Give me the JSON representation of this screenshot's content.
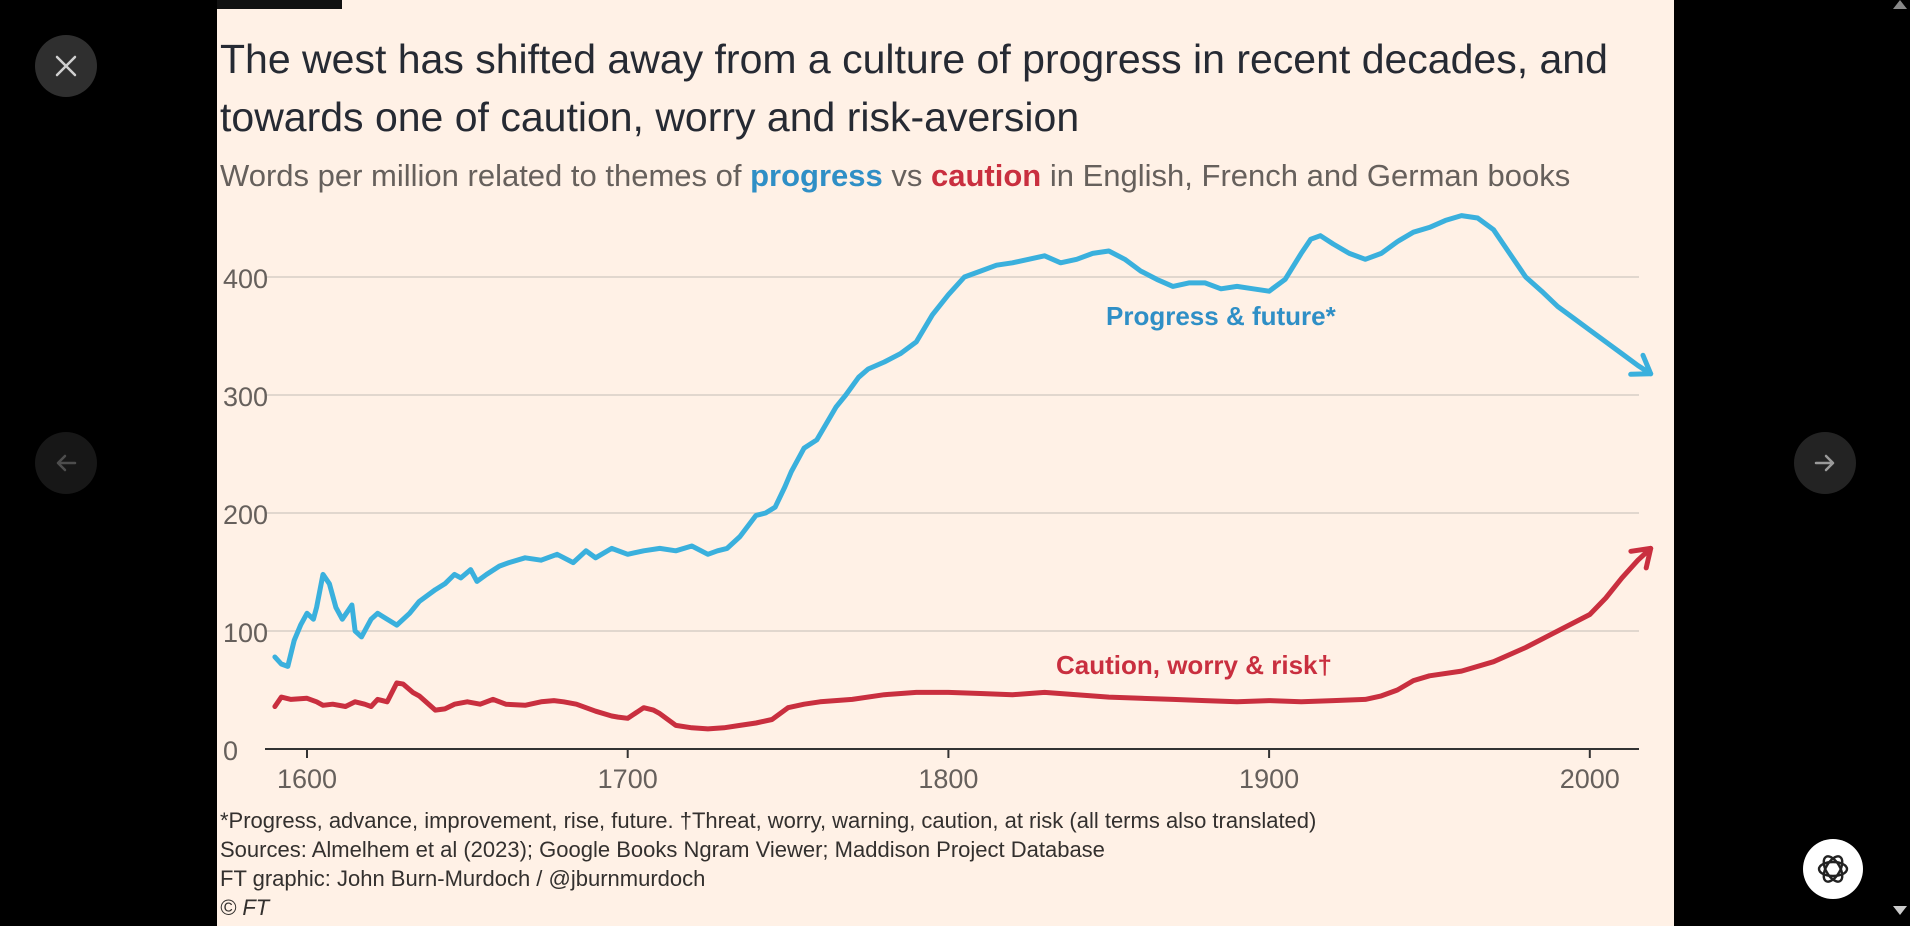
{
  "viewer": {
    "close_icon": "close-icon",
    "prev_icon": "arrow-left-icon",
    "next_icon": "arrow-right-icon",
    "assistant_icon": "openai-logo-icon"
  },
  "chart_data": {
    "type": "line",
    "title": "The west has shifted away from a culture of progress in recent decades, and towards one of caution, worry and risk-aversion",
    "subtitle": {
      "before": "Words per million related to themes of ",
      "highlight1": "progress",
      "middle": " vs ",
      "highlight2": "caution",
      "after": " in English, French and German books"
    },
    "xlim": [
      1590,
      2020
    ],
    "ylim": [
      0,
      450
    ],
    "x_ticks": [
      1600,
      1700,
      1800,
      1900,
      2000
    ],
    "y_ticks": [
      0,
      100,
      200,
      300,
      400
    ],
    "grid": true,
    "colors": {
      "progress": "#3ab0dd",
      "caution": "#c92f3f",
      "progress_label": "#2f8fc6",
      "grid": "#e1d7ce",
      "axis": "#333333",
      "tick_text": "#66605c"
    },
    "series": [
      {
        "name": "Progress & future*",
        "color": "#3ab0dd",
        "x": [
          1590,
          1592,
          1594,
          1596,
          1598,
          1600,
          1602,
          1603,
          1605,
          1607,
          1609,
          1611,
          1613,
          1614,
          1615,
          1617,
          1619,
          1620,
          1622,
          1625,
          1628,
          1632,
          1635,
          1640,
          1643,
          1646,
          1648,
          1651,
          1653,
          1656,
          1660,
          1663,
          1668,
          1673,
          1678,
          1683,
          1687,
          1690,
          1695,
          1700,
          1705,
          1710,
          1715,
          1720,
          1725,
          1728,
          1731,
          1735,
          1740,
          1743,
          1746,
          1749,
          1751,
          1755,
          1759,
          1765,
          1768,
          1772,
          1775,
          1780,
          1785,
          1790,
          1795,
          1800,
          1805,
          1810,
          1815,
          1820,
          1825,
          1830,
          1835,
          1840,
          1845,
          1850,
          1855,
          1860,
          1865,
          1870,
          1875,
          1880,
          1885,
          1890,
          1895,
          1900,
          1905,
          1910,
          1913,
          1916,
          1920,
          1925,
          1930,
          1935,
          1940,
          1945,
          1950,
          1955,
          1960,
          1965,
          1970,
          1975,
          1980,
          1985,
          1990,
          1995,
          2000,
          2005,
          2010,
          2015,
          2019
        ],
        "y": [
          78,
          72,
          70,
          92,
          105,
          115,
          110,
          120,
          148,
          140,
          120,
          110,
          118,
          122,
          100,
          95,
          105,
          110,
          115,
          110,
          105,
          115,
          125,
          135,
          140,
          148,
          145,
          152,
          142,
          148,
          155,
          158,
          162,
          160,
          165,
          158,
          168,
          162,
          170,
          165,
          168,
          170,
          168,
          172,
          165,
          168,
          170,
          180,
          198,
          200,
          205,
          222,
          235,
          255,
          262,
          290,
          300,
          315,
          322,
          328,
          335,
          345,
          368,
          385,
          400,
          405,
          410,
          412,
          415,
          418,
          412,
          415,
          420,
          422,
          415,
          405,
          398,
          392,
          395,
          395,
          390,
          392,
          390,
          388,
          398,
          420,
          432,
          435,
          428,
          420,
          415,
          420,
          430,
          438,
          442,
          448,
          452,
          450,
          440,
          420,
          400,
          388,
          375,
          365,
          355,
          345,
          335,
          325,
          318
        ]
      },
      {
        "name": "Caution, worry & risk†",
        "color": "#c92f3f",
        "x": [
          1590,
          1592,
          1595,
          1600,
          1603,
          1605,
          1608,
          1612,
          1615,
          1618,
          1620,
          1622,
          1625,
          1628,
          1630,
          1633,
          1635,
          1640,
          1643,
          1646,
          1650,
          1654,
          1658,
          1662,
          1668,
          1673,
          1677,
          1680,
          1684,
          1687,
          1690,
          1695,
          1697,
          1700,
          1705,
          1708,
          1710,
          1715,
          1720,
          1725,
          1730,
          1735,
          1740,
          1745,
          1750,
          1755,
          1760,
          1770,
          1780,
          1790,
          1800,
          1810,
          1820,
          1830,
          1840,
          1850,
          1860,
          1870,
          1880,
          1890,
          1900,
          1910,
          1920,
          1930,
          1935,
          1940,
          1945,
          1950,
          1960,
          1970,
          1980,
          1990,
          2000,
          2005,
          2010,
          2015,
          2019
        ],
        "y": [
          36,
          44,
          42,
          43,
          40,
          37,
          38,
          36,
          40,
          38,
          36,
          42,
          40,
          56,
          55,
          48,
          45,
          33,
          34,
          38,
          40,
          38,
          42,
          38,
          37,
          40,
          41,
          40,
          38,
          35,
          32,
          28,
          27,
          26,
          35,
          33,
          30,
          20,
          18,
          17,
          18,
          20,
          22,
          25,
          35,
          38,
          40,
          42,
          46,
          48,
          48,
          47,
          46,
          48,
          46,
          44,
          43,
          42,
          41,
          40,
          41,
          40,
          41,
          42,
          45,
          50,
          58,
          62,
          66,
          74,
          86,
          100,
          114,
          128,
          145,
          160,
          170
        ]
      }
    ],
    "annotations": [
      "Progress & future*",
      "Caution, worry & risk†"
    ],
    "footnotes": [
      "*Progress, advance, improvement, rise, future. †Threat, worry, warning, caution, at risk (all terms also translated)",
      "Sources: Almelhem et al (2023); Google Books Ngram Viewer; Maddison Project Database",
      "FT graphic: John Burn-Murdoch / @jburnmurdoch",
      "© FT"
    ]
  }
}
